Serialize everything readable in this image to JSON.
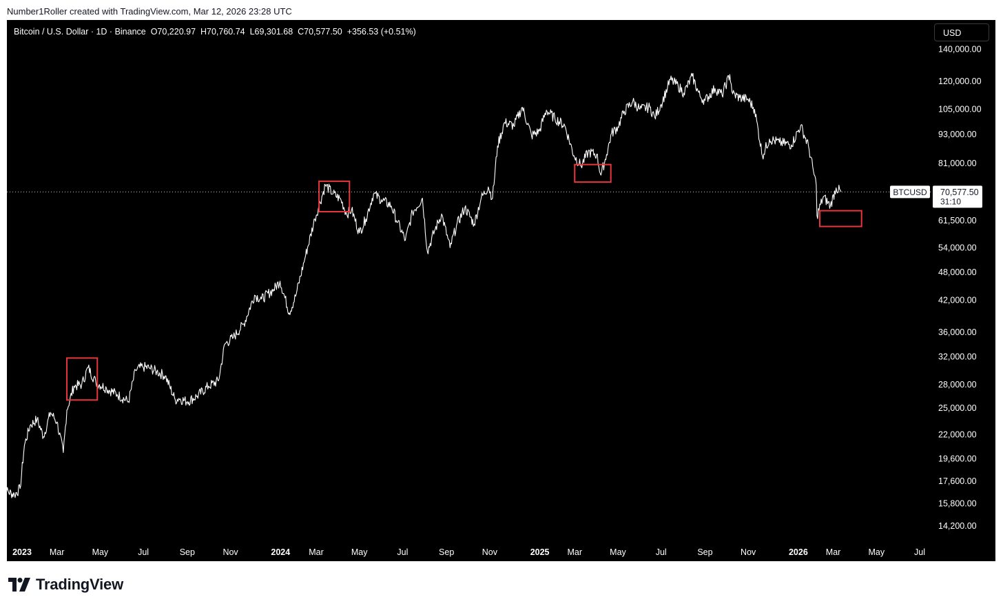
{
  "attribution": "Number1Roller created with TradingView.com, Mar 12, 2026 23:28 UTC",
  "legend": {
    "symbol": "Bitcoin / U.S. Dollar · 1D · Binance",
    "open": "O70,220.97",
    "high": "H70,760.74",
    "low": "L69,301.68",
    "close": "C70,577.50",
    "change": "+356.53 (+0.51%)"
  },
  "currency": "USD",
  "brand": "TradingView",
  "colors": {
    "background": "#000000",
    "price_line": "#ffffff",
    "highlight_box": "#e8373c",
    "text": "#ffffff"
  },
  "chart_data": {
    "type": "line",
    "series": [
      {
        "name": "BTCUSD",
        "x": [
          "2022-12-12",
          "2022-12-20",
          "2022-12-31",
          "2023-01-08",
          "2023-01-14",
          "2023-01-22",
          "2023-02-01",
          "2023-02-10",
          "2023-02-20",
          "2023-03-01",
          "2023-03-10",
          "2023-03-15",
          "2023-03-25",
          "2023-04-05",
          "2023-04-14",
          "2023-04-25",
          "2023-05-10",
          "2023-05-25",
          "2023-06-10",
          "2023-06-20",
          "2023-06-30",
          "2023-07-10",
          "2023-07-20",
          "2023-08-01",
          "2023-08-15",
          "2023-08-20",
          "2023-09-01",
          "2023-09-15",
          "2023-10-01",
          "2023-10-15",
          "2023-10-24",
          "2023-11-05",
          "2023-11-20",
          "2023-12-05",
          "2023-12-15",
          "2024-01-01",
          "2024-01-10",
          "2024-01-23",
          "2024-02-01",
          "2024-02-15",
          "2024-02-28",
          "2024-03-05",
          "2024-03-14",
          "2024-03-25",
          "2024-04-05",
          "2024-04-13",
          "2024-04-20",
          "2024-05-01",
          "2024-05-10",
          "2024-05-21",
          "2024-06-01",
          "2024-06-15",
          "2024-06-24",
          "2024-07-05",
          "2024-07-15",
          "2024-07-29",
          "2024-08-05",
          "2024-08-15",
          "2024-08-25",
          "2024-09-06",
          "2024-09-15",
          "2024-09-27",
          "2024-10-10",
          "2024-10-20",
          "2024-10-30",
          "2024-11-05",
          "2024-11-12",
          "2024-11-22",
          "2024-12-05",
          "2024-12-17",
          "2024-12-30",
          "2025-01-10",
          "2025-01-20",
          "2025-02-01",
          "2025-02-15",
          "2025-02-28",
          "2025-03-10",
          "2025-03-20",
          "2025-04-01",
          "2025-04-07",
          "2025-04-15",
          "2025-04-22",
          "2025-05-01",
          "2025-05-10",
          "2025-05-22",
          "2025-06-01",
          "2025-06-15",
          "2025-06-22",
          "2025-07-01",
          "2025-07-10",
          "2025-07-14",
          "2025-07-25",
          "2025-08-02",
          "2025-08-14",
          "2025-08-25",
          "2025-09-01",
          "2025-09-15",
          "2025-09-25",
          "2025-10-06",
          "2025-10-10",
          "2025-10-20",
          "2025-11-01",
          "2025-11-10",
          "2025-11-21",
          "2025-12-01",
          "2025-12-15",
          "2026-01-01",
          "2026-01-14",
          "2026-01-25",
          "2026-02-01",
          "2026-02-05",
          "2026-02-06",
          "2026-02-15",
          "2026-02-25",
          "2026-03-05",
          "2026-03-12"
        ],
        "values": [
          17200,
          16800,
          16500,
          17000,
          20900,
          23000,
          23700,
          21800,
          24500,
          23400,
          20200,
          24800,
          27800,
          28000,
          30400,
          28300,
          27500,
          26700,
          25800,
          30000,
          30500,
          30300,
          29800,
          29200,
          26000,
          26200,
          25800,
          26500,
          27800,
          28500,
          34000,
          35100,
          37500,
          43000,
          42200,
          44200,
          46000,
          39500,
          42800,
          52000,
          62000,
          66000,
          73000,
          70000,
          68000,
          63500,
          64800,
          58000,
          62000,
          70000,
          68000,
          66000,
          61000,
          56000,
          64000,
          68500,
          53000,
          58500,
          63500,
          54000,
          60000,
          65500,
          60500,
          68500,
          72300,
          68500,
          88000,
          98500,
          97000,
          106000,
          92500,
          94500,
          104500,
          100500,
          97000,
          84000,
          80000,
          85500,
          84500,
          76500,
          84500,
          93500,
          96500,
          104000,
          109000,
          105000,
          106000,
          101000,
          107500,
          116500,
          121000,
          117500,
          113500,
          123000,
          111500,
          109500,
          116000,
          112500,
          124000,
          113000,
          111000,
          110000,
          105000,
          84000,
          91000,
          89500,
          88500,
          97000,
          88000,
          78000,
          73000,
          63000,
          69000,
          66000,
          72000,
          70577.5
        ]
      }
    ],
    "last_value": "70,577.50",
    "last_label": "BTCUSD",
    "countdown": "31:10",
    "scale": "log",
    "y_ticks": [
      140000,
      120000,
      105000,
      93000,
      81000,
      70000,
      61500,
      54000,
      48000,
      42000,
      36000,
      32000,
      28000,
      25000,
      22000,
      19600,
      17600,
      15800,
      14200
    ],
    "y_tick_labels": [
      "140,000.00",
      "120,000.00",
      "105,000.00",
      "93,000.00",
      "81,000.00",
      "",
      "61,500.00",
      "54,000.00",
      "48,000.00",
      "42,000.00",
      "36,000.00",
      "32,000.00",
      "28,000.00",
      "25,000.00",
      "22,000.00",
      "19,600.00",
      "17,600.00",
      "15,800.00",
      "14,200.00"
    ],
    "x_ticks": [
      {
        "date": "2023-01-01",
        "label": "2023",
        "bold": true
      },
      {
        "date": "2023-03-01",
        "label": "Mar"
      },
      {
        "date": "2023-05-01",
        "label": "May"
      },
      {
        "date": "2023-07-01",
        "label": "Jul"
      },
      {
        "date": "2023-09-01",
        "label": "Sep"
      },
      {
        "date": "2023-11-01",
        "label": "Nov"
      },
      {
        "date": "2024-01-01",
        "label": "2024",
        "bold": true
      },
      {
        "date": "2024-03-01",
        "label": "Mar"
      },
      {
        "date": "2024-05-01",
        "label": "May"
      },
      {
        "date": "2024-07-01",
        "label": "Jul"
      },
      {
        "date": "2024-09-01",
        "label": "Sep"
      },
      {
        "date": "2024-11-01",
        "label": "Nov"
      },
      {
        "date": "2025-01-01",
        "label": "2025",
        "bold": true
      },
      {
        "date": "2025-03-01",
        "label": "Mar"
      },
      {
        "date": "2025-05-01",
        "label": "May"
      },
      {
        "date": "2025-07-01",
        "label": "Jul"
      },
      {
        "date": "2025-09-01",
        "label": "Sep"
      },
      {
        "date": "2025-11-01",
        "label": "Nov"
      },
      {
        "date": "2026-01-01",
        "label": "2026",
        "bold": true
      },
      {
        "date": "2026-03-01",
        "label": "Mar"
      },
      {
        "date": "2026-05-01",
        "label": "May"
      },
      {
        "date": "2026-07-01",
        "label": "Jul"
      }
    ],
    "annotations": [
      {
        "x0": "2023-03-15",
        "x1": "2023-04-27",
        "y0": 26000,
        "y1": 31800
      },
      {
        "x0": "2024-03-05",
        "x1": "2024-04-17",
        "y0": 64200,
        "y1": 74300
      },
      {
        "x0": "2025-03-01",
        "x1": "2025-04-21",
        "y0": 74000,
        "y1": 80500
      },
      {
        "x0": "2026-02-10",
        "x1": "2026-04-10",
        "y0": 59800,
        "y1": 64500
      }
    ]
  }
}
